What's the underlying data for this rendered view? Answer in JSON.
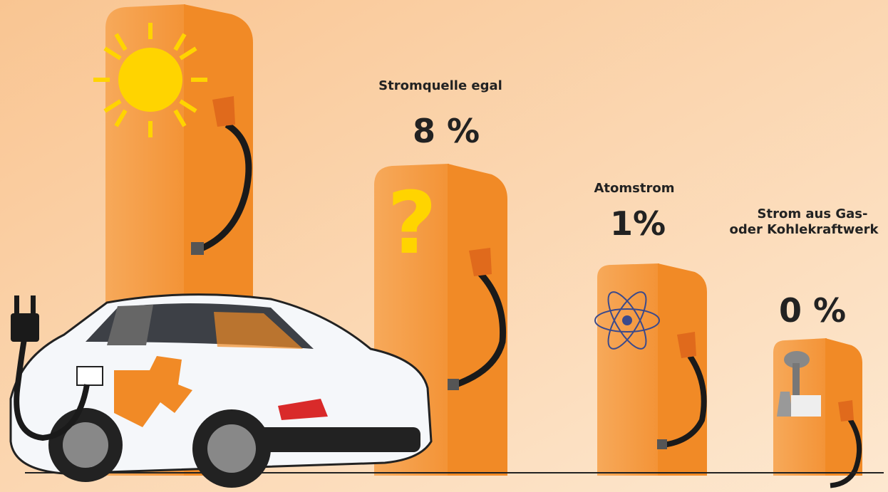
{
  "columns": [
    {
      "label": [
        "Stromquelle egal"
      ],
      "value": "8 %"
    },
    {
      "label": [
        "Atomstrom"
      ],
      "value": "1%"
    },
    {
      "label": [
        "Strom aus Gas-",
        "oder Kohlekraftwerk"
      ],
      "value": "0 %"
    }
  ]
}
